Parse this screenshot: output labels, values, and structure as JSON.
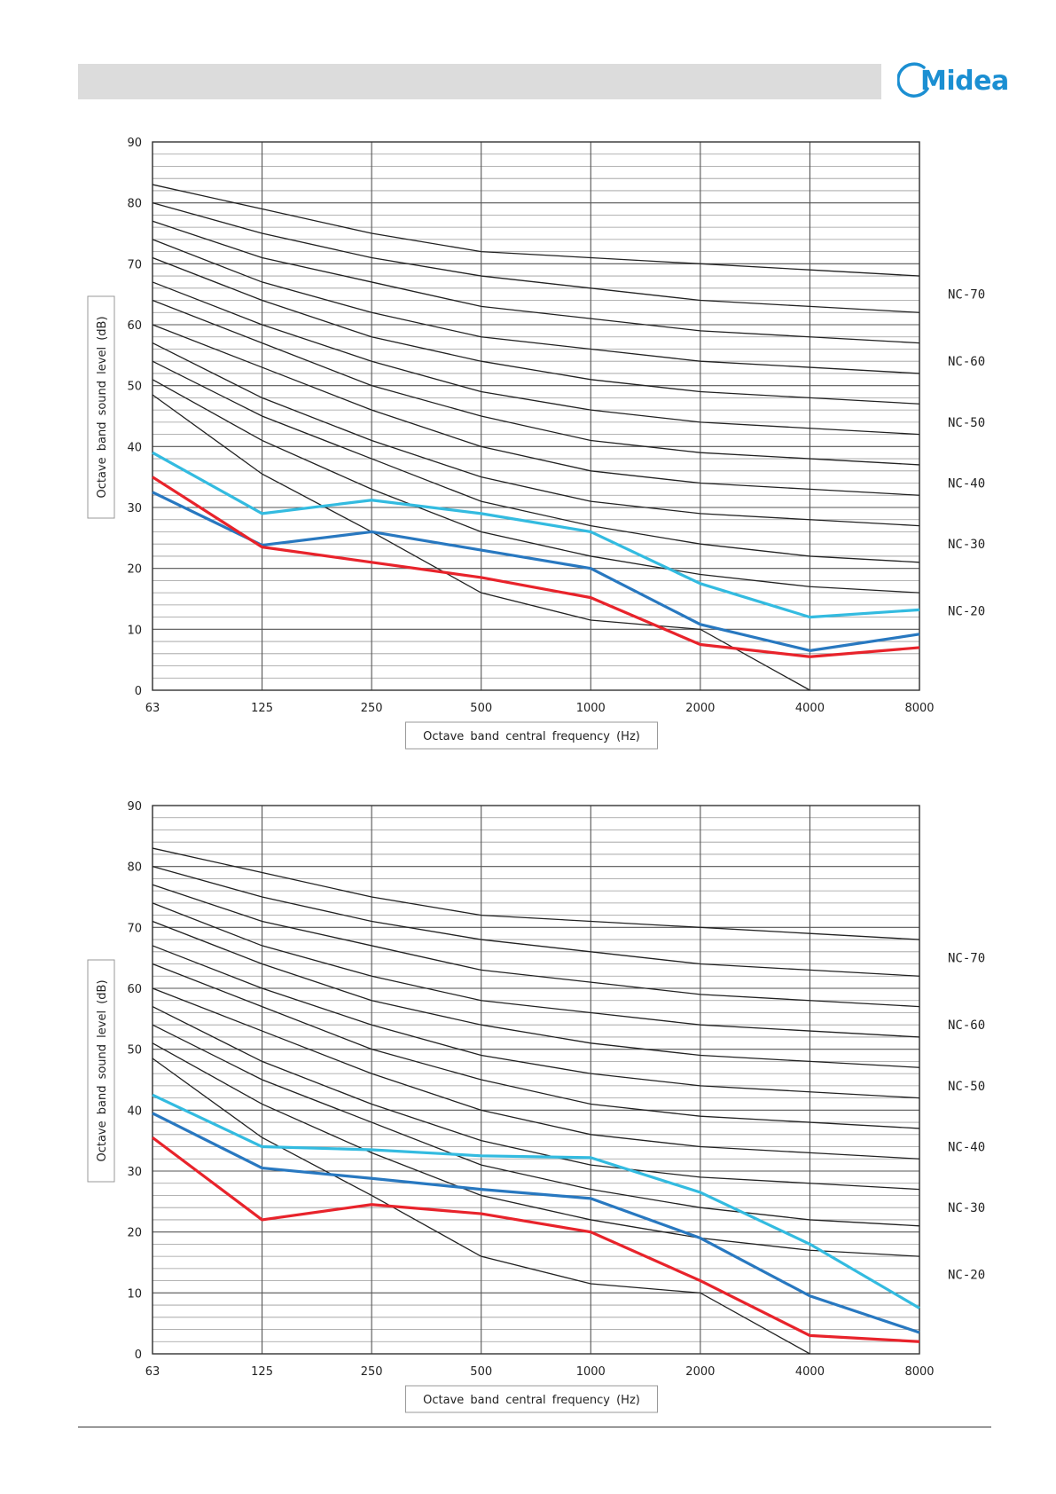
{
  "header": {
    "logo_text": "Midea"
  },
  "colors": {
    "nc_curve": "#222222",
    "grid": "#555555",
    "series_light_blue": "#33bbe0",
    "series_blue": "#2878c0",
    "series_red": "#e8232b"
  },
  "chart_data": [
    {
      "type": "line",
      "title": "",
      "xlabel": "Octave band central frequency  (Hz)",
      "ylabel": "Octave band sound level (dB)",
      "categories": [
        "63",
        "125",
        "250",
        "500",
        "1000",
        "2000",
        "4000",
        "8000"
      ],
      "ylim": [
        0,
        90
      ],
      "yticks": [
        0,
        10,
        20,
        30,
        40,
        50,
        60,
        70,
        80,
        90
      ],
      "grid": true,
      "nc_curves": [
        {
          "name": "NC-70",
          "values": [
            83,
            79,
            75,
            72,
            71,
            70,
            69,
            68
          ]
        },
        {
          "name": "",
          "values": [
            80,
            75,
            71,
            68,
            66,
            64,
            63,
            62
          ]
        },
        {
          "name": "NC-60",
          "values": [
            77,
            71,
            67,
            63,
            61,
            59,
            58,
            57
          ]
        },
        {
          "name": "",
          "values": [
            74,
            67,
            62,
            58,
            56,
            54,
            53,
            52
          ]
        },
        {
          "name": "NC-50",
          "values": [
            71,
            64,
            58,
            54,
            51,
            49,
            48,
            47
          ]
        },
        {
          "name": "",
          "values": [
            67,
            60,
            54,
            49,
            46,
            44,
            43,
            42
          ]
        },
        {
          "name": "NC-40",
          "values": [
            64,
            57,
            50,
            45,
            41,
            39,
            38,
            37
          ]
        },
        {
          "name": "",
          "values": [
            60,
            53,
            46,
            40,
            36,
            34,
            33,
            32
          ]
        },
        {
          "name": "NC-30",
          "values": [
            57,
            48,
            41,
            35,
            31,
            29,
            28,
            27
          ]
        },
        {
          "name": "",
          "values": [
            54,
            45,
            38,
            31,
            27,
            24,
            22,
            21
          ]
        },
        {
          "name": "NC-20",
          "values": [
            51,
            41,
            33,
            26,
            22,
            19,
            17,
            16
          ]
        },
        {
          "name": "",
          "values": [
            48.5,
            35.5,
            26,
            16,
            11.5,
            10,
            0,
            null
          ]
        }
      ],
      "nc_labels": [
        "NC-70",
        "NC-60",
        "NC-50",
        "NC-40",
        "NC-30",
        "NC-20"
      ],
      "series": [
        {
          "color": "#33bbe0",
          "values": [
            39,
            29,
            31.2,
            29,
            26,
            17.5,
            12,
            13.2
          ]
        },
        {
          "color": "#2878c0",
          "values": [
            32.5,
            23.8,
            26,
            23,
            20,
            10.8,
            6.5,
            9.2
          ]
        },
        {
          "color": "#e8232b",
          "values": [
            35,
            23.5,
            21,
            18.5,
            15.2,
            7.5,
            5.5,
            7
          ]
        }
      ]
    },
    {
      "type": "line",
      "title": "",
      "xlabel": "Octave band central frequency  (Hz)",
      "ylabel": "Octave band sound level (dB)",
      "categories": [
        "63",
        "125",
        "250",
        "500",
        "1000",
        "2000",
        "4000",
        "8000"
      ],
      "ylim": [
        0,
        90
      ],
      "yticks": [
        0,
        10,
        20,
        30,
        40,
        50,
        60,
        70,
        80,
        90
      ],
      "grid": true,
      "nc_curves": [
        {
          "name": "NC-70",
          "values": [
            83,
            79,
            75,
            72,
            71,
            70,
            69,
            68
          ]
        },
        {
          "name": "",
          "values": [
            80,
            75,
            71,
            68,
            66,
            64,
            63,
            62
          ]
        },
        {
          "name": "NC-60",
          "values": [
            77,
            71,
            67,
            63,
            61,
            59,
            58,
            57
          ]
        },
        {
          "name": "",
          "values": [
            74,
            67,
            62,
            58,
            56,
            54,
            53,
            52
          ]
        },
        {
          "name": "NC-50",
          "values": [
            71,
            64,
            58,
            54,
            51,
            49,
            48,
            47
          ]
        },
        {
          "name": "",
          "values": [
            67,
            60,
            54,
            49,
            46,
            44,
            43,
            42
          ]
        },
        {
          "name": "NC-40",
          "values": [
            64,
            57,
            50,
            45,
            41,
            39,
            38,
            37
          ]
        },
        {
          "name": "",
          "values": [
            60,
            53,
            46,
            40,
            36,
            34,
            33,
            32
          ]
        },
        {
          "name": "NC-30",
          "values": [
            57,
            48,
            41,
            35,
            31,
            29,
            28,
            27
          ]
        },
        {
          "name": "",
          "values": [
            54,
            45,
            38,
            31,
            27,
            24,
            22,
            21
          ]
        },
        {
          "name": "NC-20",
          "values": [
            51,
            41,
            33,
            26,
            22,
            19,
            17,
            16
          ]
        },
        {
          "name": "",
          "values": [
            48.5,
            35.5,
            26,
            16,
            11.5,
            10,
            0,
            null
          ]
        }
      ],
      "nc_labels": [
        "NC-70",
        "NC-60",
        "NC-50",
        "NC-40",
        "NC-30",
        "NC-20"
      ],
      "series": [
        {
          "color": "#33bbe0",
          "values": [
            42.5,
            34,
            33.5,
            32.5,
            32.2,
            26.5,
            18,
            7.5
          ]
        },
        {
          "color": "#2878c0",
          "values": [
            39.5,
            30.5,
            28.8,
            27,
            25.5,
            19,
            9.5,
            3.5
          ]
        },
        {
          "color": "#e8232b",
          "values": [
            35.5,
            22,
            24.5,
            23,
            20,
            12,
            3,
            2
          ]
        }
      ]
    }
  ]
}
